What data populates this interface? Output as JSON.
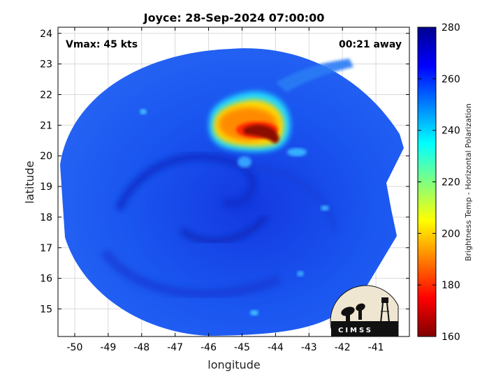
{
  "chart_data": {
    "type": "heatmap",
    "title": "Joyce: 28-Sep-2024 07:00:00",
    "xlabel": "longitude",
    "ylabel": "latitude",
    "xlim": [
      -50.5,
      -40
    ],
    "ylim": [
      14.1,
      24.2
    ],
    "x_ticks": [
      "-50",
      "-49",
      "-48",
      "-47",
      "-46",
      "-45",
      "-44",
      "-43",
      "-42",
      "-41"
    ],
    "y_ticks": [
      "24",
      "23",
      "22",
      "21",
      "20",
      "19",
      "18",
      "17",
      "16",
      "15"
    ],
    "grid": true,
    "annotations": {
      "vmax": "Vmax: 45 kts",
      "time_offset": "00:21 away"
    },
    "colorbar": {
      "label": "Brightness Temp - Horizontal Polarization",
      "min": 160,
      "max": 280,
      "ticks": [
        "280",
        "260",
        "240",
        "220",
        "200",
        "180",
        "160"
      ],
      "colormap": "jet"
    },
    "center": {
      "lon": -45.2,
      "lat": 19.2
    },
    "features": [
      {
        "kind": "cold-core",
        "lon": -44.8,
        "lat": 20.8,
        "min_value": 165
      },
      {
        "kind": "deep-convection",
        "lon": -45.3,
        "lat": 21.0,
        "value": 195
      }
    ],
    "background_value": 262
  },
  "logo": {
    "text": "CIMSS",
    "background": "#efe6d2",
    "ink": "#111111"
  },
  "colors": {
    "frame": "#000000",
    "grid": "#d9d9d9"
  }
}
